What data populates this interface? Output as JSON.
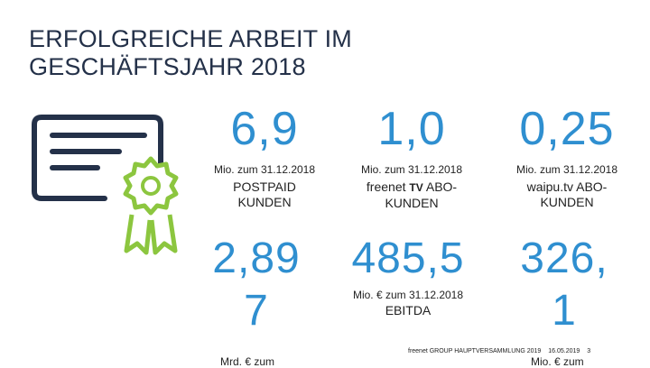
{
  "title": "ERFOLGREICHE ARBEIT IM\nGESCHÄFTSJAHR 2018",
  "stats": {
    "postpaid": {
      "value": "6,9",
      "meta": "Mio. zum 31.12.2018",
      "label": "POSTPAID\nKUNDEN"
    },
    "freenet_tv": {
      "value": "1,0",
      "meta": "Mio. zum 31.12.2018",
      "label_prefix": "freenet ",
      "label_brand": "TV",
      "label_suffix": " ABO-\nKUNDEN"
    },
    "waipu": {
      "value": "0,25",
      "meta": "Mio. zum 31.12.2018",
      "label": "waipu.tv ABO-\nKUNDEN"
    },
    "row2_left": {
      "value_line1": "2,89",
      "value_line2": "7",
      "meta": "Mrd. € zum"
    },
    "ebitda": {
      "value": "485,5",
      "meta": "Mio. € zum 31.12.2018",
      "label": "EBITDA"
    },
    "row2_right": {
      "value_line1": "326,",
      "value_line2": "1",
      "meta": "Mio. € zum"
    }
  },
  "footer": {
    "text": "freenet GROUP HAUPTVERSAMMLUNG 2019",
    "date": "16.05.2019",
    "page": "3"
  },
  "colors": {
    "accent": "#2f8fd0",
    "navy": "#243149",
    "green": "#8cc63f"
  },
  "icon": "certificate-icon"
}
